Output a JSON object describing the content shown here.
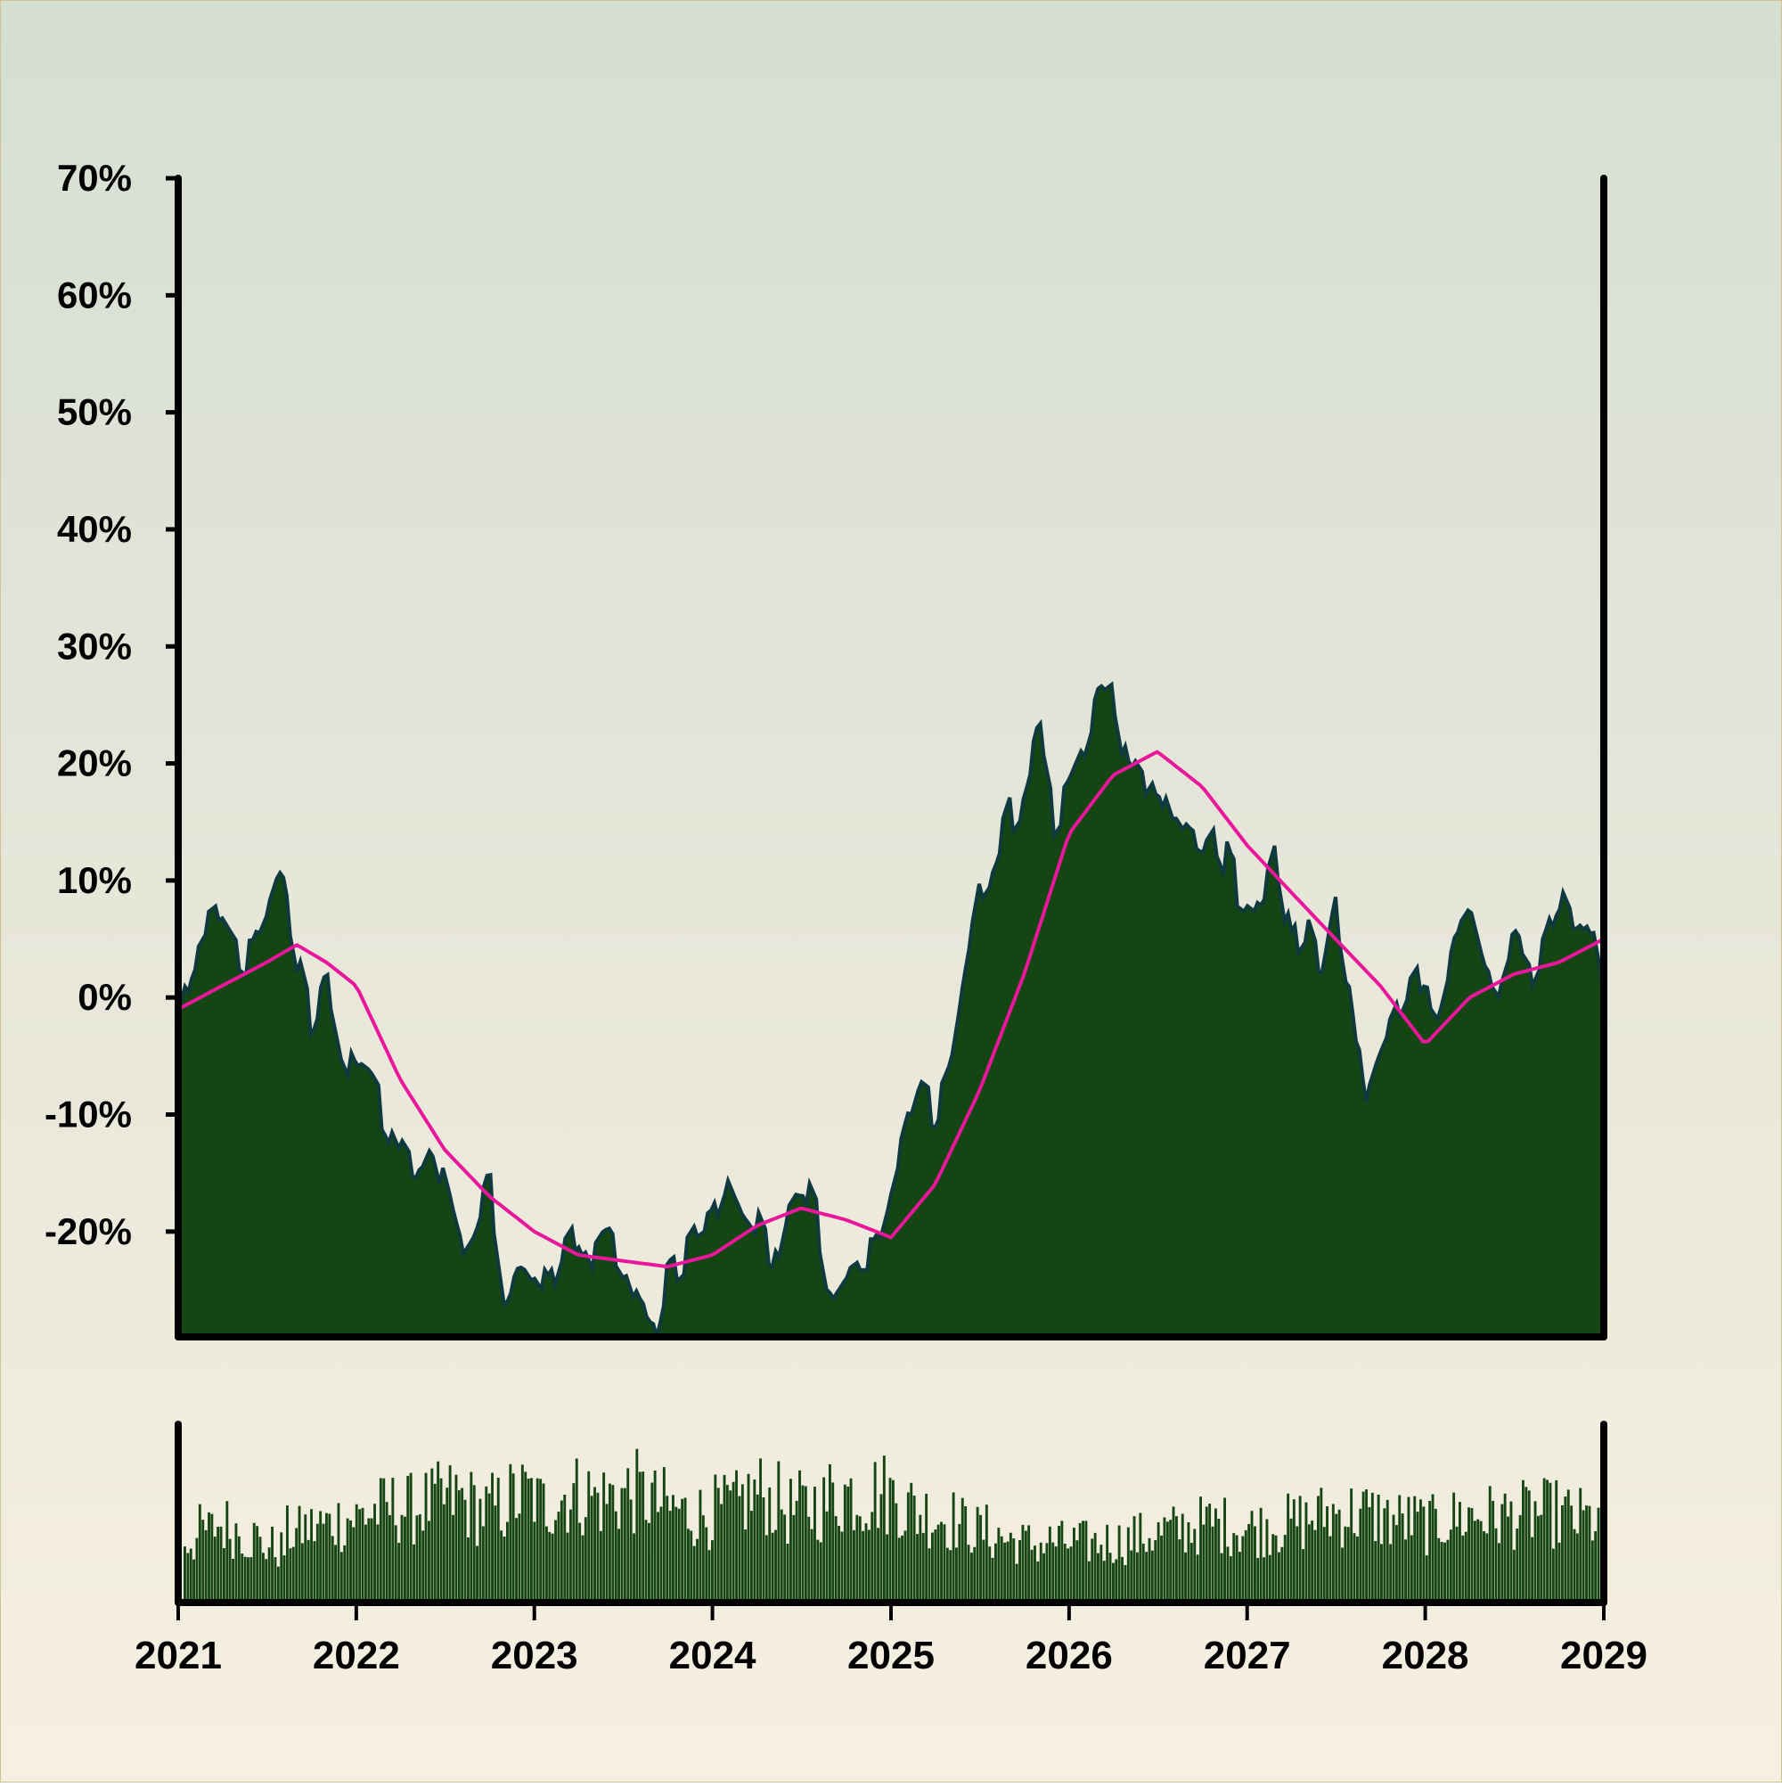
{
  "chart_data": [
    {
      "type": "area",
      "panel": "main",
      "title": "",
      "xlabel": "",
      "ylabel": "",
      "x_range": [
        "2021-01-01",
        "2029-01-01"
      ],
      "ylim": [
        -0.29,
        0.7
      ],
      "yticks": [
        -0.2,
        -0.1,
        0,
        0.1,
        0.2,
        0.3,
        0.4,
        0.5,
        0.6,
        0.7
      ],
      "ytick_labels": [
        "-20%",
        "-10%",
        "0%",
        "10%",
        "20%",
        "30%",
        "40%",
        "50%",
        "60%",
        "70%"
      ],
      "grid": false,
      "legend": "none",
      "colors": {
        "area_fill": "#154512",
        "area_edge": "#0e3a3f",
        "moving_average": "#e8179b"
      },
      "series": [
        {
          "kind": "area",
          "x": [
            "2021-01-01",
            "2021-02-01",
            "2021-03-01",
            "2021-04-01",
            "2021-05-01",
            "2021-06-01",
            "2021-07-01",
            "2021-08-01",
            "2021-09-01",
            "2021-10-01",
            "2021-11-01",
            "2021-12-01",
            "2022-01-01",
            "2022-02-01",
            "2022-03-01",
            "2022-04-01",
            "2022-05-01",
            "2022-06-01",
            "2022-07-01",
            "2022-08-01",
            "2022-09-01",
            "2022-10-01",
            "2022-11-01",
            "2022-12-01",
            "2023-01-01",
            "2023-02-01",
            "2023-03-01",
            "2023-04-01",
            "2023-05-01",
            "2023-06-01",
            "2023-07-01",
            "2023-08-01",
            "2023-09-01",
            "2023-10-01",
            "2023-11-01",
            "2023-12-01",
            "2024-01-01",
            "2024-02-01",
            "2024-03-01",
            "2024-04-01",
            "2024-05-01",
            "2024-06-01",
            "2024-07-01",
            "2024-08-01",
            "2024-09-01",
            "2024-10-01",
            "2024-11-01",
            "2024-12-01",
            "2025-01-01",
            "2025-02-01",
            "2025-03-01",
            "2025-04-01",
            "2025-05-01",
            "2025-06-01",
            "2025-07-01",
            "2025-08-01",
            "2025-09-01",
            "2025-10-01",
            "2025-11-01",
            "2025-12-01",
            "2026-01-01",
            "2026-02-01",
            "2026-03-01",
            "2026-04-01",
            "2026-05-01",
            "2026-06-01",
            "2026-07-01",
            "2026-08-01",
            "2026-09-01",
            "2026-10-01",
            "2026-11-01",
            "2026-12-01",
            "2027-01-01",
            "2027-02-01",
            "2027-03-01",
            "2027-04-01",
            "2027-05-01",
            "2027-06-01",
            "2027-07-01",
            "2027-08-01",
            "2027-09-01",
            "2027-10-01",
            "2027-11-01",
            "2027-12-01",
            "2028-01-01",
            "2028-02-01",
            "2028-03-01",
            "2028-04-01",
            "2028-05-01",
            "2028-06-01",
            "2028-07-01",
            "2028-08-01",
            "2028-09-01",
            "2028-10-01",
            "2028-11-01",
            "2028-12-01",
            "2029-01-01"
          ],
          "y": [
            -0.02,
            0.03,
            0.05,
            0.06,
            0.04,
            0.03,
            0.06,
            0.1,
            0.03,
            -0.02,
            0.02,
            -0.04,
            -0.07,
            -0.08,
            -0.1,
            -0.13,
            -0.15,
            -0.12,
            -0.17,
            -0.22,
            -0.2,
            -0.16,
            -0.25,
            -0.22,
            -0.24,
            -0.26,
            -0.22,
            -0.2,
            -0.23,
            -0.21,
            -0.23,
            -0.27,
            -0.29,
            -0.23,
            -0.22,
            -0.2,
            -0.19,
            -0.15,
            -0.18,
            -0.2,
            -0.23,
            -0.17,
            -0.15,
            -0.18,
            -0.25,
            -0.23,
            -0.22,
            -0.22,
            -0.17,
            -0.12,
            -0.08,
            -0.09,
            -0.06,
            0.02,
            0.09,
            0.11,
            0.15,
            0.17,
            0.22,
            0.16,
            0.18,
            0.21,
            0.25,
            0.26,
            0.19,
            0.17,
            0.19,
            0.15,
            0.13,
            0.12,
            0.14,
            0.1,
            0.09,
            0.08,
            0.12,
            0.04,
            0.06,
            0.02,
            0.09,
            0.01,
            -0.1,
            -0.06,
            -0.03,
            0.0,
            0.02,
            0.0,
            0.05,
            0.07,
            0.02,
            0.0,
            0.04,
            0.02,
            0.05,
            0.09,
            0.06,
            0.07,
            0.0
          ]
        },
        {
          "kind": "line",
          "x": [
            "2021-01-01",
            "2021-04-01",
            "2021-07-01",
            "2021-09-01",
            "2021-11-01",
            "2022-01-01",
            "2022-04-01",
            "2022-07-01",
            "2022-10-01",
            "2023-01-01",
            "2023-04-01",
            "2023-07-01",
            "2023-10-01",
            "2024-01-01",
            "2024-04-01",
            "2024-07-01",
            "2024-10-01",
            "2025-01-01",
            "2025-04-01",
            "2025-07-01",
            "2025-10-01",
            "2026-01-01",
            "2026-04-01",
            "2026-07-01",
            "2026-10-01",
            "2027-01-01",
            "2027-04-01",
            "2027-07-01",
            "2027-10-01",
            "2028-01-01",
            "2028-04-01",
            "2028-07-01",
            "2028-10-01",
            "2029-01-01"
          ],
          "y": [
            -0.01,
            0.01,
            0.03,
            0.045,
            0.03,
            0.01,
            -0.07,
            -0.13,
            -0.17,
            -0.2,
            -0.22,
            -0.225,
            -0.23,
            -0.22,
            -0.195,
            -0.18,
            -0.19,
            -0.205,
            -0.16,
            -0.08,
            0.02,
            0.14,
            0.19,
            0.21,
            0.18,
            0.13,
            0.09,
            0.05,
            0.01,
            -0.04,
            0.0,
            0.02,
            0.03,
            0.05
          ]
        }
      ]
    },
    {
      "type": "bar",
      "panel": "volume",
      "title": "",
      "xlabel": "",
      "ylabel": "",
      "x_range": [
        "2021-01-01",
        "2029-01-01"
      ],
      "xticks": [
        "2021",
        "2022",
        "2023",
        "2024",
        "2025",
        "2026",
        "2027",
        "2028",
        "2029"
      ],
      "ylim": [
        0,
        1
      ],
      "grid": false,
      "color": "#154512",
      "values_by_month": [
        0.42,
        0.48,
        0.52,
        0.49,
        0.44,
        0.38,
        0.36,
        0.47,
        0.5,
        0.52,
        0.55,
        0.57,
        0.6,
        0.62,
        0.64,
        0.63,
        0.66,
        0.68,
        0.7,
        0.66,
        0.62,
        0.64,
        0.7,
        0.72,
        0.66,
        0.7,
        0.73,
        0.72,
        0.7,
        0.72,
        0.74,
        0.71,
        0.66,
        0.63,
        0.6,
        0.59,
        0.62,
        0.64,
        0.7,
        0.73,
        0.68,
        0.62,
        0.64,
        0.66,
        0.72,
        0.74,
        0.72,
        0.74,
        0.72,
        0.64,
        0.6,
        0.58,
        0.56,
        0.52,
        0.48,
        0.45,
        0.42,
        0.4,
        0.39,
        0.41,
        0.4,
        0.4,
        0.4,
        0.41,
        0.42,
        0.44,
        0.46,
        0.48,
        0.5,
        0.52,
        0.53,
        0.52,
        0.5,
        0.5,
        0.52,
        0.53,
        0.55,
        0.58,
        0.6,
        0.6,
        0.6,
        0.58,
        0.56,
        0.55,
        0.54,
        0.52,
        0.56,
        0.58,
        0.59,
        0.58,
        0.58,
        0.59,
        0.6,
        0.6,
        0.58,
        0.56,
        0.55
      ]
    }
  ]
}
